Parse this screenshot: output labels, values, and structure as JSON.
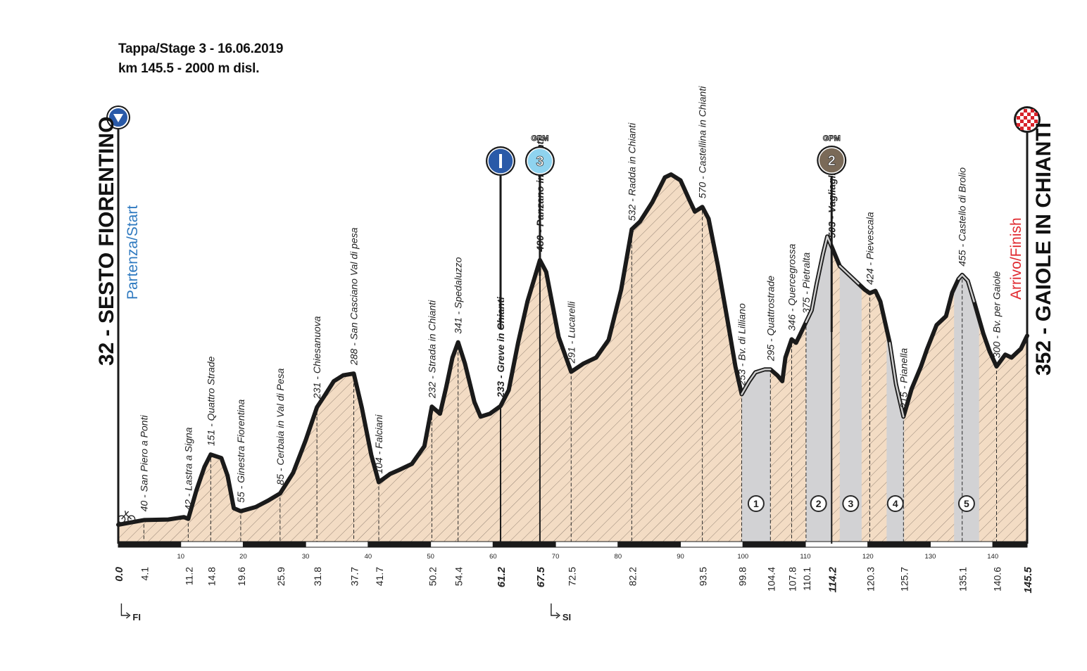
{
  "header": {
    "title": "Tappa/Stage 3 - 16.06.2019",
    "subtitle": "km 145.5 - 2000 m disl."
  },
  "start": {
    "name": "32 - SESTO FIORENTINO",
    "label": "Partenza/Start"
  },
  "finish": {
    "name": "352 - GAIOLE IN CHIANTI",
    "label": "Arrivo/Finish"
  },
  "colors": {
    "profile_fill": "#f3dcc4",
    "hatch": "#8a7a6c",
    "sector_fill": "#d2d2d4",
    "profile_line": "#1a1a1a",
    "start_marker": "#2a5aa8",
    "start_label": "#2f7ac0",
    "finish_label": "#e0282e",
    "intermediate_marker": "#2a5aa8",
    "gpm3_marker": "#8fd3ef",
    "gpm2_marker": "#7a6a58"
  },
  "chart_data": {
    "type": "area",
    "title": "Tappa/Stage 3 - 16.06.2019",
    "subtitle": "km 145.5 - 2000 m disl.",
    "xlabel": "",
    "ylabel": "",
    "xlim": [
      0,
      145.5
    ],
    "ylim": [
      0,
      700
    ],
    "grid": false,
    "x_ticks": [
      10,
      20,
      30,
      40,
      50,
      60,
      70,
      80,
      90,
      100,
      110,
      120,
      130,
      140
    ],
    "profile": [
      [
        0.0,
        32
      ],
      [
        2.0,
        36
      ],
      [
        4.1,
        40
      ],
      [
        8.0,
        41
      ],
      [
        10.5,
        45
      ],
      [
        11.2,
        42
      ],
      [
        12.5,
        90
      ],
      [
        13.8,
        130
      ],
      [
        14.8,
        151
      ],
      [
        16.5,
        145
      ],
      [
        17.5,
        115
      ],
      [
        18.5,
        60
      ],
      [
        19.6,
        55
      ],
      [
        22.0,
        62
      ],
      [
        24.0,
        73
      ],
      [
        25.9,
        85
      ],
      [
        28.0,
        120
      ],
      [
        30.0,
        175
      ],
      [
        31.8,
        231
      ],
      [
        33.0,
        250
      ],
      [
        34.5,
        275
      ],
      [
        36.0,
        285
      ],
      [
        37.7,
        288
      ],
      [
        39.0,
        230
      ],
      [
        40.5,
        150
      ],
      [
        41.7,
        104
      ],
      [
        43.5,
        118
      ],
      [
        45.0,
        125
      ],
      [
        47.0,
        135
      ],
      [
        49.0,
        165
      ],
      [
        50.2,
        232
      ],
      [
        51.5,
        220
      ],
      [
        52.5,
        265
      ],
      [
        53.5,
        315
      ],
      [
        54.4,
        341
      ],
      [
        55.5,
        305
      ],
      [
        57.0,
        240
      ],
      [
        58.0,
        215
      ],
      [
        59.5,
        220
      ],
      [
        61.2,
        233
      ],
      [
        62.5,
        260
      ],
      [
        64.0,
        340
      ],
      [
        65.5,
        410
      ],
      [
        67.5,
        480
      ],
      [
        68.5,
        460
      ],
      [
        70.5,
        350
      ],
      [
        72.5,
        291
      ],
      [
        74.5,
        305
      ],
      [
        76.5,
        315
      ],
      [
        78.5,
        345
      ],
      [
        80.5,
        430
      ],
      [
        82.2,
        532
      ],
      [
        83.5,
        545
      ],
      [
        85.5,
        578
      ],
      [
        87.5,
        620
      ],
      [
        88.5,
        625
      ],
      [
        90.0,
        615
      ],
      [
        91.5,
        580
      ],
      [
        92.3,
        562
      ],
      [
        93.5,
        570
      ],
      [
        94.5,
        550
      ],
      [
        96.0,
        470
      ],
      [
        97.5,
        380
      ],
      [
        98.8,
        300
      ],
      [
        99.8,
        253
      ],
      [
        101.0,
        275
      ],
      [
        102.0,
        290
      ],
      [
        103.5,
        295
      ],
      [
        104.4,
        295
      ],
      [
        105.5,
        285
      ],
      [
        106.3,
        275
      ],
      [
        106.8,
        315
      ],
      [
        107.8,
        346
      ],
      [
        108.5,
        340
      ],
      [
        109.2,
        355
      ],
      [
        110.1,
        375
      ],
      [
        111.0,
        395
      ],
      [
        111.8,
        440
      ],
      [
        112.8,
        490
      ],
      [
        113.5,
        520
      ],
      [
        114.2,
        503
      ],
      [
        115.5,
        470
      ],
      [
        117.0,
        455
      ],
      [
        118.5,
        440
      ],
      [
        119.5,
        430
      ],
      [
        120.3,
        424
      ],
      [
        121.2,
        428
      ],
      [
        122.0,
        410
      ],
      [
        123.5,
        340
      ],
      [
        124.5,
        270
      ],
      [
        125.7,
        215
      ],
      [
        127.0,
        262
      ],
      [
        128.5,
        300
      ],
      [
        129.5,
        330
      ],
      [
        131.0,
        370
      ],
      [
        132.5,
        385
      ],
      [
        133.5,
        425
      ],
      [
        134.5,
        448
      ],
      [
        135.1,
        455
      ],
      [
        136.0,
        445
      ],
      [
        137.0,
        410
      ],
      [
        138.5,
        355
      ],
      [
        139.5,
        325
      ],
      [
        140.6,
        300
      ],
      [
        142.0,
        320
      ],
      [
        143.0,
        315
      ],
      [
        144.5,
        330
      ],
      [
        145.5,
        352
      ]
    ],
    "sector_bands": [
      [
        99.8,
        104.4
      ],
      [
        110.1,
        114.2
      ],
      [
        115.5,
        119.0
      ],
      [
        123.0,
        125.8
      ],
      [
        133.8,
        137.8
      ]
    ],
    "waypoints": [
      {
        "km": "0.0",
        "x": 0.0,
        "label": "",
        "bold": true
      },
      {
        "km": "4.1",
        "x": 4.1,
        "label": "40 - San Piero a Ponti"
      },
      {
        "km": "11.2",
        "x": 11.2,
        "label": "42 - Lastra a Signa"
      },
      {
        "km": "14.8",
        "x": 14.8,
        "label": "151 - Quattro Strade"
      },
      {
        "km": "19.6",
        "x": 19.6,
        "label": "55 - Ginestra Fiorentina"
      },
      {
        "km": "25.9",
        "x": 25.9,
        "label": "85 - Cerbaia in Val di Pesa"
      },
      {
        "km": "31.8",
        "x": 31.8,
        "label": "231 - Chiesanuova"
      },
      {
        "km": "37.7",
        "x": 37.7,
        "label": "288 - San Casciano Val di pesa"
      },
      {
        "km": "41.7",
        "x": 41.7,
        "label": "104 - Falciani"
      },
      {
        "km": "50.2",
        "x": 50.2,
        "label": "232 - Strada in Chianti"
      },
      {
        "km": "54.4",
        "x": 54.4,
        "label": "341 - Spedaluzzo"
      },
      {
        "km": "61.2",
        "x": 61.2,
        "label": "233 - Greve in Chianti",
        "bold": true
      },
      {
        "km": "67.5",
        "x": 67.5,
        "label": "480 - Panzano in Chianti",
        "bold": true
      },
      {
        "km": "72.5",
        "x": 72.5,
        "label": "291 - Lucarelli"
      },
      {
        "km": "82.2",
        "x": 82.2,
        "label": "532 - Radda in Chianti"
      },
      {
        "km": "93.5",
        "x": 93.5,
        "label": "570 - Castellina in Chianti"
      },
      {
        "km": "99.8",
        "x": 99.8,
        "label": "253 - Bv. di Lilliano"
      },
      {
        "km": "104.4",
        "x": 104.4,
        "label": "295 - Quattrostrade"
      },
      {
        "km": "107.8",
        "x": 107.8,
        "label": "346 - Quercegrossa"
      },
      {
        "km": "110.1",
        "x": 110.1,
        "label": "375 - Pietralta"
      },
      {
        "km": "114.2",
        "x": 114.2,
        "label": "503 - Vagliagli",
        "bold": true
      },
      {
        "km": "120.3",
        "x": 120.3,
        "label": "424 - Pievescala"
      },
      {
        "km": "125.7",
        "x": 125.7,
        "label": "215 - Pianella"
      },
      {
        "km": "135.1",
        "x": 135.1,
        "label": "455 - Castello di Brolio"
      },
      {
        "km": "140.6",
        "x": 140.6,
        "label": "300 - Bv. per Gaiole"
      },
      {
        "km": "145.5",
        "x": 145.5,
        "label": "",
        "bold": true
      }
    ],
    "markers": [
      {
        "x": 61.2,
        "type": "intermediate",
        "symbol": "I",
        "top_label": ""
      },
      {
        "x": 67.5,
        "type": "gpm3",
        "symbol": "3",
        "top_label": "GPM"
      },
      {
        "x": 114.2,
        "type": "gpm2",
        "symbol": "2",
        "top_label": "GPM"
      }
    ],
    "sectors": [
      {
        "x": 102.1,
        "num": "1"
      },
      {
        "x": 112.1,
        "num": "2"
      },
      {
        "x": 117.25,
        "num": "3"
      },
      {
        "x": 124.4,
        "num": "4"
      },
      {
        "x": 135.8,
        "num": "5"
      }
    ],
    "road_markers": [
      {
        "x": 0.5,
        "label": "FI"
      },
      {
        "x": 69.3,
        "label": "SI"
      }
    ]
  }
}
